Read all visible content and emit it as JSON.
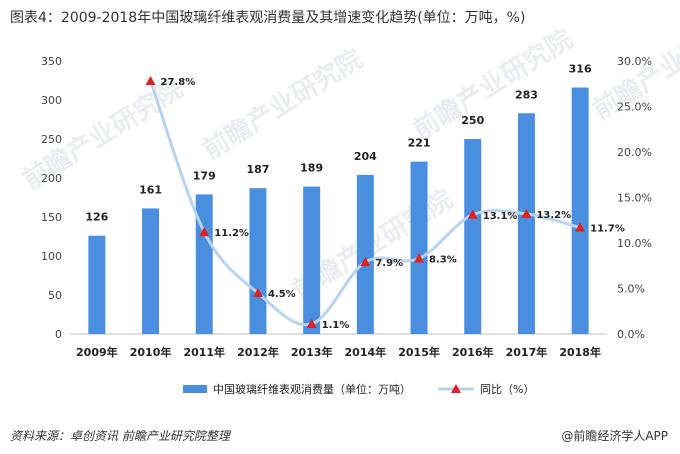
{
  "title": "图表4：2009-2018年中国玻璃纤维表观消费量及其增速变化趋势(单位：万吨，%)",
  "chart_data": {
    "type": "bar",
    "categories": [
      "2009年",
      "2010年",
      "2011年",
      "2012年",
      "2013年",
      "2014年",
      "2015年",
      "2016年",
      "2017年",
      "2018年"
    ],
    "series": [
      {
        "name": "中国玻璃纤维表观消费量（单位：万吨）",
        "type": "bar",
        "axis": "left",
        "values": [
          126,
          161,
          179,
          187,
          189,
          204,
          221,
          250,
          283,
          316
        ]
      },
      {
        "name": "同比（%）",
        "type": "line",
        "axis": "right",
        "values": [
          null,
          27.8,
          11.2,
          4.5,
          1.1,
          7.9,
          8.3,
          13.1,
          13.2,
          11.7
        ]
      }
    ],
    "y_left": {
      "min": 0,
      "max": 350,
      "ticks": [
        "0",
        "50",
        "100",
        "150",
        "200",
        "250",
        "300",
        "350"
      ]
    },
    "y_right": {
      "min": 0,
      "max": 30,
      "ticks": [
        "0.0%",
        "5.0%",
        "10.0%",
        "15.0%",
        "20.0%",
        "25.0%",
        "30.0%"
      ]
    },
    "bar_labels": [
      "126",
      "161",
      "179",
      "187",
      "189",
      "204",
      "221",
      "250",
      "283",
      "316"
    ],
    "line_labels": [
      "",
      "27.8%",
      "11.2%",
      "4.5%",
      "1.1%",
      "7.9%",
      "8.3%",
      "13.1%",
      "13.2%",
      "11.7%"
    ],
    "legend_position": "bottom",
    "grid": false,
    "colors": {
      "bar": "#4a8fdf",
      "line": "#b9d3ef",
      "marker": "#e02020"
    }
  },
  "footer": {
    "source": "资料来源：卓创资讯 前瞻产业研究院整理",
    "brand": "@前瞻经济学人APP"
  },
  "watermark": "前瞻产业研究院"
}
